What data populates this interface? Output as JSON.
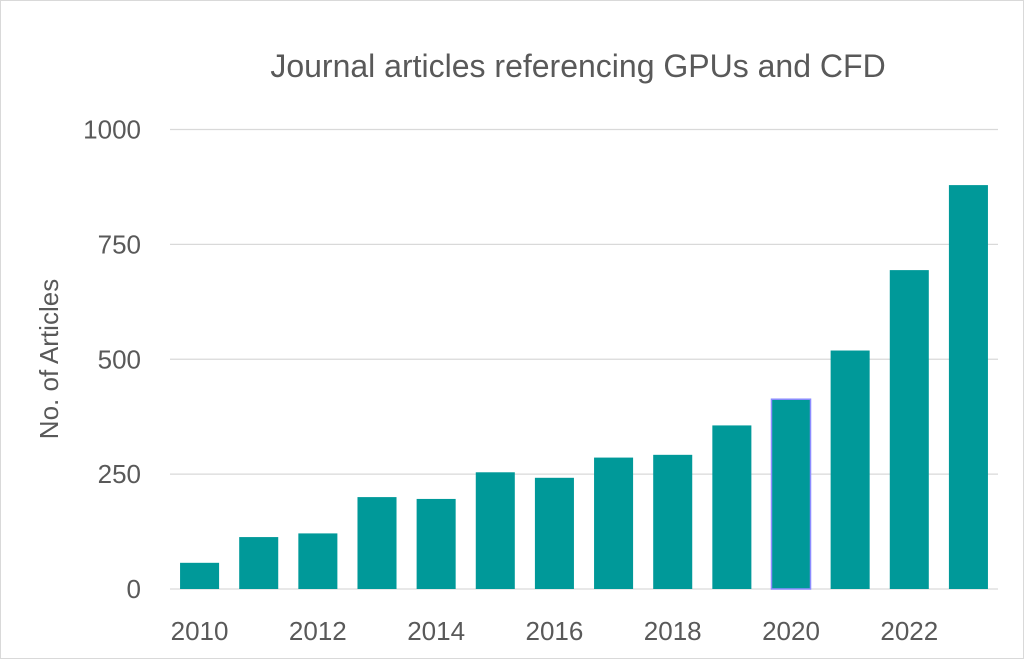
{
  "chart_data": {
    "type": "bar",
    "title": "Journal articles referencing GPUs and CFD",
    "xlabel": "",
    "ylabel": "No. of Articles",
    "categories": [
      "2010",
      "2011",
      "2012",
      "2013",
      "2014",
      "2015",
      "2016",
      "2017",
      "2018",
      "2019",
      "2020",
      "2021",
      "2022",
      "2023"
    ],
    "x_tick_labels": [
      "2010",
      "2012",
      "2014",
      "2016",
      "2018",
      "2020",
      "2022"
    ],
    "values": [
      57,
      113,
      121,
      200,
      196,
      254,
      242,
      286,
      292,
      356,
      413,
      519,
      694,
      879
    ],
    "ylim": [
      0,
      1000
    ],
    "y_ticks": [
      0,
      250,
      500,
      750,
      1000
    ],
    "grid": true,
    "legend": "none",
    "highlighted_category": "2020",
    "colors": {
      "bar": "#009999",
      "highlight_outline": "#8c8cff",
      "grid": "#d9d9d9",
      "text": "#595959"
    }
  }
}
